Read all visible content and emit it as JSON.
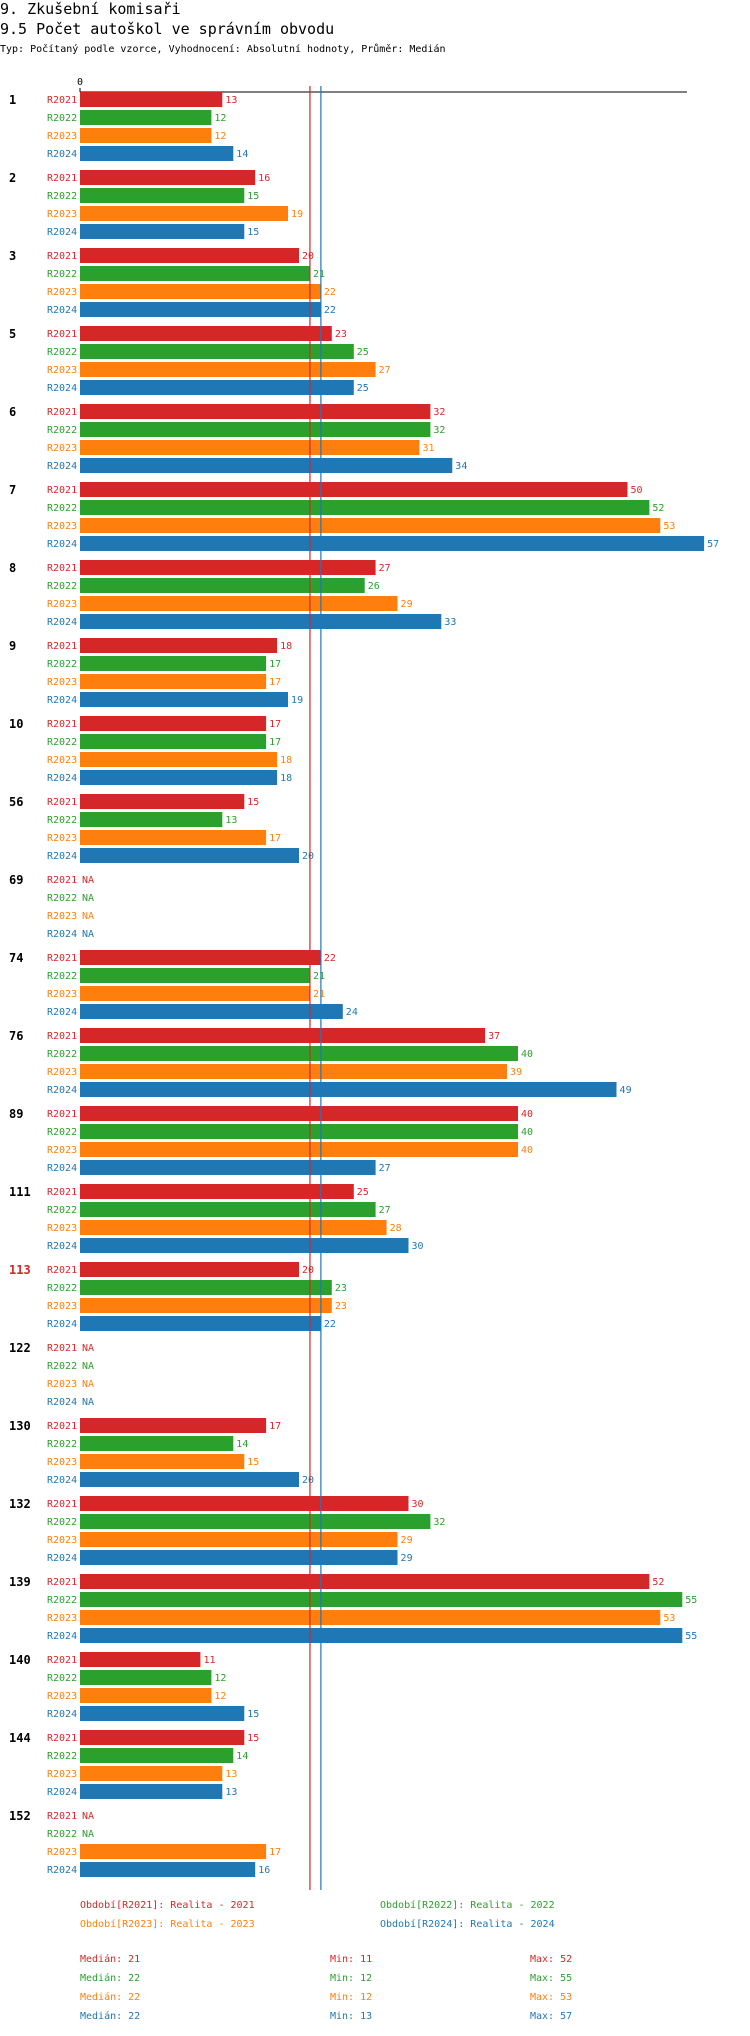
{
  "header": {
    "section_title": "9. Zkušební komisaři",
    "chart_title": "9.5 Počet autoškol ve správním obvodu",
    "subtitle": "Typ: Počítaný podle vzorce, Vyhodnocení: Absolutní hodnoty, Průměr: Medián"
  },
  "colors": {
    "R2021": "#d62728",
    "R2022": "#2ca02c",
    "R2023": "#ff7f0e",
    "R2024": "#1f77b4",
    "highlight_group": "#d62728",
    "text": "#000000"
  },
  "chart_data": {
    "type": "bar",
    "orientation": "horizontal",
    "axis_zero_label": "0",
    "xlim": [
      0,
      57
    ],
    "series_names": [
      "R2021",
      "R2022",
      "R2023",
      "R2024"
    ],
    "na_label": "NA",
    "highlighted_group": "113",
    "groups": [
      {
        "label": "1",
        "values": [
          13,
          12,
          12,
          14
        ]
      },
      {
        "label": "2",
        "values": [
          16,
          15,
          19,
          15
        ]
      },
      {
        "label": "3",
        "values": [
          20,
          21,
          22,
          22
        ]
      },
      {
        "label": "5",
        "values": [
          23,
          25,
          27,
          25
        ]
      },
      {
        "label": "6",
        "values": [
          32,
          32,
          31,
          34
        ]
      },
      {
        "label": "7",
        "values": [
          50,
          52,
          53,
          57
        ]
      },
      {
        "label": "8",
        "values": [
          27,
          26,
          29,
          33
        ]
      },
      {
        "label": "9",
        "values": [
          18,
          17,
          17,
          19
        ]
      },
      {
        "label": "10",
        "values": [
          17,
          17,
          18,
          18
        ]
      },
      {
        "label": "56",
        "values": [
          15,
          13,
          17,
          20
        ]
      },
      {
        "label": "69",
        "values": [
          null,
          null,
          null,
          null
        ]
      },
      {
        "label": "74",
        "values": [
          22,
          21,
          21,
          24
        ]
      },
      {
        "label": "76",
        "values": [
          37,
          40,
          39,
          49
        ]
      },
      {
        "label": "89",
        "values": [
          40,
          40,
          40,
          27
        ]
      },
      {
        "label": "111",
        "values": [
          25,
          27,
          28,
          30
        ]
      },
      {
        "label": "113",
        "values": [
          20,
          23,
          23,
          22
        ]
      },
      {
        "label": "122",
        "values": [
          null,
          null,
          null,
          null
        ]
      },
      {
        "label": "130",
        "values": [
          17,
          14,
          15,
          20
        ]
      },
      {
        "label": "132",
        "values": [
          30,
          32,
          29,
          29
        ]
      },
      {
        "label": "139",
        "values": [
          52,
          55,
          53,
          55
        ]
      },
      {
        "label": "140",
        "values": [
          11,
          12,
          12,
          15
        ]
      },
      {
        "label": "144",
        "values": [
          15,
          14,
          13,
          13
        ]
      },
      {
        "label": "152",
        "values": [
          null,
          null,
          17,
          16
        ]
      }
    ],
    "reference_lines": [
      {
        "series": "R2021",
        "value": 21
      },
      {
        "series": "R2024",
        "value": 22
      }
    ],
    "legend": [
      {
        "series": "R2021",
        "text": "Období[R2021]: Realita - 2021"
      },
      {
        "series": "R2022",
        "text": "Období[R2022]: Realita - 2022"
      },
      {
        "series": "R2023",
        "text": "Období[R2023]: Realita - 2023"
      },
      {
        "series": "R2024",
        "text": "Období[R2024]: Realita - 2024"
      }
    ],
    "stats": [
      {
        "series": "R2021",
        "median": "Medián: 21",
        "min": "Min: 11",
        "max": "Max: 52"
      },
      {
        "series": "R2022",
        "median": "Medián: 22",
        "min": "Min: 12",
        "max": "Max: 55"
      },
      {
        "series": "R2023",
        "median": "Medián: 22",
        "min": "Min: 12",
        "max": "Max: 53"
      },
      {
        "series": "R2024",
        "median": "Medián: 22",
        "min": "Min: 13",
        "max": "Max: 57"
      }
    ]
  }
}
